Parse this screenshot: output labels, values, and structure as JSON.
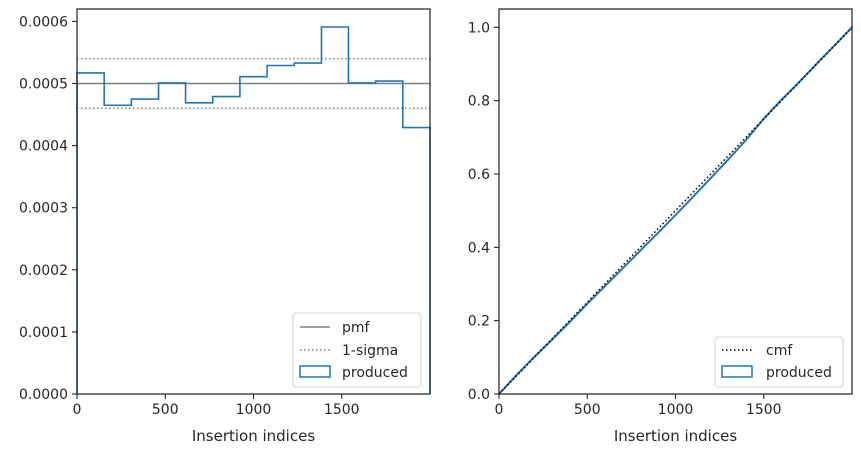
{
  "chart_data": [
    {
      "type": "histogram",
      "xlabel": "Insertion indices",
      "ylabel": "",
      "xlim": [
        0,
        2000
      ],
      "ylim": [
        0,
        0.00062
      ],
      "xticks": [
        0,
        500,
        1000,
        1500
      ],
      "xtick_labels": [
        "0",
        "500",
        "1000",
        "1500"
      ],
      "yticks": [
        0,
        0.0001,
        0.0002,
        0.0003,
        0.0004,
        0.0005,
        0.0006
      ],
      "ytick_labels": [
        "0.0000",
        "0.0001",
        "0.0002",
        "0.0003",
        "0.0004",
        "0.0005",
        "0.0006"
      ],
      "pmf": 0.0005,
      "sigma_band": [
        0.00046,
        0.00054
      ],
      "bin_edges": [
        0,
        154,
        308,
        462,
        615,
        769,
        923,
        1077,
        1231,
        1385,
        1538,
        1692,
        1846,
        2000
      ],
      "bin_values": [
        0.000517,
        0.000465,
        0.000475,
        0.000501,
        0.000469,
        0.000479,
        0.000511,
        0.000529,
        0.000533,
        0.000591,
        0.000501,
        0.000504,
        0.000429
      ],
      "legend_position": "lower right",
      "legend": [
        {
          "label": "pmf",
          "style": "solid",
          "color": "#808080"
        },
        {
          "label": "1-sigma",
          "style": "dotted",
          "color": "#808080"
        },
        {
          "label": "produced",
          "style": "step",
          "color": "#1f77b4"
        }
      ]
    },
    {
      "type": "line",
      "xlabel": "Insertion indices",
      "ylabel": "",
      "xlim": [
        0,
        2000
      ],
      "ylim": [
        0,
        1.05
      ],
      "xticks": [
        0,
        500,
        1000,
        1500
      ],
      "xtick_labels": [
        "0",
        "500",
        "1000",
        "1500"
      ],
      "yticks": [
        0,
        0.2,
        0.4,
        0.6,
        0.8,
        1.0
      ],
      "ytick_labels": [
        "0.0",
        "0.2",
        "0.4",
        "0.6",
        "0.8",
        "1.0"
      ],
      "series": [
        {
          "name": "cmf",
          "style": "dotted",
          "color": "#000000",
          "x": [
            0,
            2000
          ],
          "y": [
            0,
            1.0
          ]
        },
        {
          "name": "produced",
          "style": "solid",
          "color": "#1f77b4",
          "x": [
            0,
            100,
            200,
            300,
            400,
            500,
            600,
            700,
            800,
            900,
            1000,
            1100,
            1200,
            1300,
            1400,
            1500,
            1600,
            1700,
            1800,
            1900,
            2000
          ],
          "y": [
            0,
            0.052,
            0.101,
            0.148,
            0.196,
            0.246,
            0.294,
            0.342,
            0.391,
            0.439,
            0.488,
            0.538,
            0.589,
            0.64,
            0.693,
            0.751,
            0.802,
            0.85,
            0.901,
            0.95,
            1.0
          ]
        }
      ],
      "legend_position": "lower right",
      "legend": [
        {
          "label": "cmf",
          "style": "dotted",
          "color": "#000000"
        },
        {
          "label": "produced",
          "style": "step",
          "color": "#1f77b4"
        }
      ]
    }
  ]
}
